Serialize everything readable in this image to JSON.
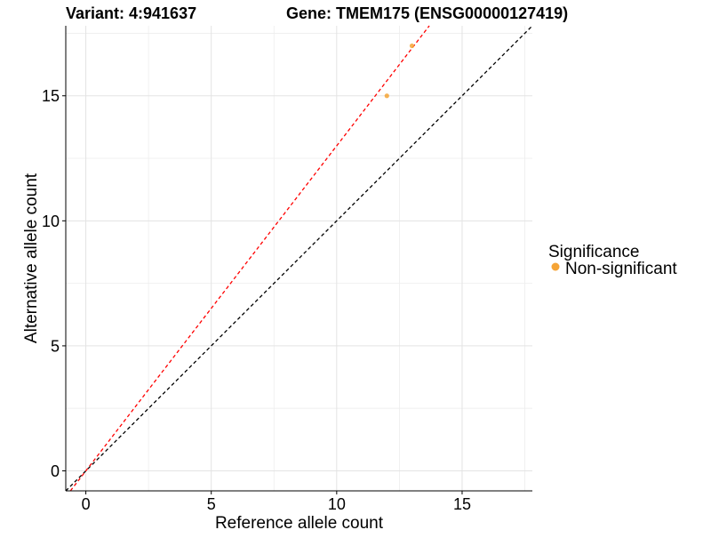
{
  "chart_data": {
    "type": "scatter",
    "title_left": "Variant: 4:941637",
    "title_right": "Gene: TMEM175 (ENSG00000127419)",
    "xlabel": "Reference allele count",
    "ylabel": "Alternative allele count",
    "xlim": [
      -0.8,
      17.8
    ],
    "ylim": [
      -0.8,
      17.8
    ],
    "x_ticks": [
      0,
      5,
      10,
      15
    ],
    "y_ticks": [
      0,
      5,
      10,
      15
    ],
    "grid": true,
    "series": [
      {
        "name": "Non-significant",
        "color": "#F5A436",
        "points": [
          {
            "x": 12,
            "y": 15
          },
          {
            "x": 13,
            "y": 17
          }
        ]
      }
    ],
    "reference_lines": [
      {
        "slope": 1.0,
        "intercept": 0,
        "color": "#000000",
        "style": "dashed"
      },
      {
        "slope": 1.3,
        "intercept": 0,
        "color": "#FF0000",
        "style": "dashed"
      }
    ],
    "legend": {
      "title": "Significance",
      "position": "right",
      "items": [
        {
          "label": "Non-significant",
          "color": "#F5A436"
        }
      ]
    }
  }
}
